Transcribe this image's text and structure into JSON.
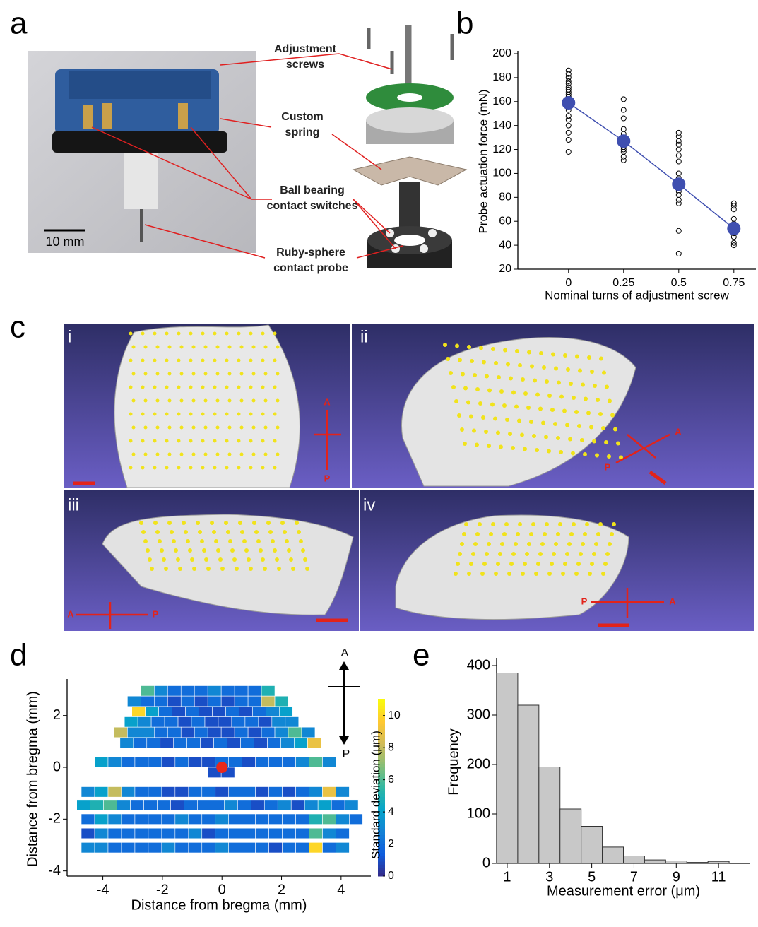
{
  "panel_labels": [
    "a",
    "b",
    "c",
    "d",
    "e"
  ],
  "photo_a": {
    "scale_bar": "10 mm",
    "callouts": [
      [
        "Adjustment",
        "screws"
      ],
      [
        "Custom",
        "spring"
      ],
      [
        "Ball bearing",
        "contact switches"
      ],
      [
        "Ruby-sphere",
        "contact probe"
      ]
    ]
  },
  "views_c": {
    "panels": [
      {
        "label": "i",
        "arrow": [
          "A",
          "P"
        ]
      },
      {
        "label": "ii",
        "arrow": [
          "A",
          "P"
        ]
      },
      {
        "label": "iii",
        "arrow": [
          "A",
          "P"
        ]
      },
      {
        "label": "iv",
        "arrow": [
          "P",
          "A"
        ]
      }
    ]
  },
  "chart_data": [
    {
      "type": "scatter",
      "ylabel": "Probe actuation force (mN)",
      "xlabel": "Nominal turns of adjustment screw",
      "xlim": [
        -0.23,
        0.85
      ],
      "ylim": [
        20,
        200
      ],
      "xticks": [
        0,
        0.25,
        0.5,
        0.75
      ],
      "yticks": [
        20,
        40,
        60,
        80,
        100,
        120,
        140,
        160,
        180,
        200
      ],
      "series": [
        {
          "color": "#000000",
          "marker": "open",
          "x": [
            0,
            0,
            0,
            0,
            0,
            0,
            0,
            0,
            0,
            0,
            0,
            0,
            0,
            0,
            0,
            0,
            0,
            0,
            0,
            0,
            0,
            0.25,
            0.25,
            0.25,
            0.25,
            0.25,
            0.25,
            0.25,
            0.25,
            0.25,
            0.25,
            0.25,
            0.25,
            0.25,
            0.5,
            0.5,
            0.5,
            0.5,
            0.5,
            0.5,
            0.5,
            0.5,
            0.5,
            0.5,
            0.5,
            0.5,
            0.5,
            0.5,
            0.5,
            0.5,
            0.5,
            0.5,
            0.75,
            0.75,
            0.75,
            0.75,
            0.75,
            0.75,
            0.75,
            0.75,
            0.75,
            0.75,
            0.75,
            0.75
          ],
          "values": [
            186,
            183,
            180,
            177,
            175,
            172,
            170,
            168,
            166,
            164,
            162,
            160,
            158,
            156,
            153,
            148,
            145,
            140,
            134,
            128,
            118,
            162,
            153,
            146,
            137,
            133,
            129,
            126,
            124,
            122,
            120,
            118,
            114,
            111,
            134,
            131,
            127,
            124,
            120,
            115,
            110,
            100,
            96,
            92,
            90,
            88,
            85,
            82,
            78,
            75,
            52,
            33,
            75,
            73,
            70,
            62,
            58,
            56,
            54,
            52,
            50,
            47,
            42,
            40
          ]
        },
        {
          "color": "#3f4fb0",
          "marker": "filled",
          "line": true,
          "x": [
            0,
            0.25,
            0.5,
            0.75
          ],
          "values": [
            159,
            127,
            91,
            54
          ]
        }
      ]
    },
    {
      "type": "heatmap",
      "xlabel": "Distance from bregma (mm)",
      "ylabel": "Distance from bregma (mm)",
      "xlim": [
        -5.2,
        5
      ],
      "ylim": [
        -4.2,
        3.3
      ],
      "xticks": [
        -4,
        -2,
        0,
        2,
        4
      ],
      "yticks": [
        -4,
        -2,
        0,
        2
      ],
      "colorbar": {
        "label": "Standard deviation (μm)",
        "lim": [
          0,
          11
        ],
        "ticks": [
          0,
          2,
          4,
          6,
          8,
          10
        ]
      },
      "colormap": [
        "#352a87",
        "#0f5cdd",
        "#1481d6",
        "#06a4ca",
        "#2eb7a4",
        "#87bf77",
        "#d1bb59",
        "#fec832",
        "#f9fb0e"
      ],
      "marker_color": "#e8291c",
      "orientation": [
        "A",
        "P"
      ],
      "rows": [
        {
          "y": 2.95,
          "x": [
            -2.5,
            -2.05,
            -1.6,
            -1.15,
            -0.7,
            -0.25,
            0.2,
            0.65,
            1.1,
            1.55
          ],
          "values": [
            6,
            3,
            2,
            2,
            2,
            3,
            2,
            2,
            2,
            5
          ]
        },
        {
          "y": 2.55,
          "x": [
            -2.95,
            -2.5,
            -2.05,
            -1.6,
            -1.15,
            -0.7,
            -0.25,
            0.2,
            0.65,
            1.1,
            1.55,
            2.0
          ],
          "values": [
            3,
            2,
            2,
            1,
            2,
            1,
            2,
            1,
            2,
            2,
            8,
            5
          ]
        },
        {
          "y": 2.15,
          "x": [
            -2.8,
            -2.35,
            -1.9,
            -1.45,
            -1.0,
            -0.55,
            -0.1,
            0.35,
            0.8,
            1.25,
            1.7,
            2.15
          ],
          "values": [
            10,
            4,
            2,
            1,
            2,
            1,
            1,
            2,
            1,
            2,
            3,
            4
          ]
        },
        {
          "y": 1.75,
          "x": [
            -3.05,
            -2.6,
            -2.15,
            -1.7,
            -1.25,
            -0.8,
            -0.35,
            0.1,
            0.55,
            1.0,
            1.45,
            1.9,
            2.35
          ],
          "values": [
            4,
            3,
            2,
            2,
            1,
            2,
            1,
            1,
            2,
            2,
            1,
            3,
            3
          ]
        },
        {
          "y": 1.35,
          "x": [
            -3.4,
            -2.95,
            -2.5,
            -2.05,
            -1.6,
            -1.15,
            -0.7,
            -0.25,
            0.2,
            0.65,
            1.1,
            1.55,
            2.0,
            2.45,
            2.9
          ],
          "values": [
            8,
            3,
            3,
            2,
            2,
            1,
            2,
            1,
            1,
            2,
            1,
            2,
            3,
            6,
            3
          ]
        },
        {
          "y": 0.95,
          "x": [
            -3.2,
            -2.75,
            -2.3,
            -1.85,
            -1.4,
            -0.95,
            -0.5,
            -0.05,
            0.4,
            0.85,
            1.3,
            1.75,
            2.2,
            2.65,
            3.1
          ],
          "values": [
            3,
            2,
            2,
            1,
            2,
            2,
            1,
            2,
            1,
            2,
            1,
            2,
            3,
            4,
            9
          ]
        },
        {
          "y": 0.2,
          "x": [
            -4.05,
            -3.6,
            -3.15,
            -2.7,
            -2.25,
            -1.8,
            -1.35,
            -0.9,
            -0.45,
            0.0,
            0.45,
            0.9,
            1.35,
            1.8,
            2.25,
            2.7,
            3.15,
            3.6
          ],
          "values": [
            4,
            3,
            2,
            2,
            2,
            1,
            2,
            1,
            1,
            2,
            2,
            1,
            2,
            2,
            2,
            3,
            6,
            3
          ]
        },
        {
          "y": -0.2,
          "x": [
            -0.25,
            0.2
          ],
          "values": [
            1,
            1
          ]
        },
        {
          "y": -0.95,
          "x": [
            -4.5,
            -4.05,
            -3.6,
            -3.15,
            -2.7,
            -2.25,
            -1.8,
            -1.35,
            -0.9,
            -0.45,
            0,
            0.45,
            0.9,
            1.35,
            1.8,
            2.25,
            2.7,
            3.15,
            3.6,
            4.05
          ],
          "values": [
            3,
            4,
            8,
            3,
            2,
            2,
            1,
            1,
            2,
            2,
            1,
            2,
            2,
            1,
            2,
            1,
            2,
            3,
            9,
            3
          ]
        },
        {
          "y": -1.45,
          "x": [
            -4.65,
            -4.2,
            -3.75,
            -3.3,
            -2.85,
            -2.4,
            -1.95,
            -1.5,
            -1.05,
            -0.6,
            -0.15,
            0.3,
            0.75,
            1.2,
            1.65,
            2.1,
            2.55,
            3.0,
            3.45,
            3.9,
            4.35
          ],
          "values": [
            4,
            5,
            6,
            3,
            2,
            2,
            2,
            1,
            2,
            2,
            2,
            3,
            2,
            1,
            2,
            3,
            1,
            3,
            4,
            2,
            3
          ]
        },
        {
          "y": -2.0,
          "x": [
            -4.5,
            -4.05,
            -3.6,
            -3.15,
            -2.7,
            -2.25,
            -1.8,
            -1.35,
            -0.9,
            -0.45,
            0,
            0.45,
            0.9,
            1.35,
            1.8,
            2.25,
            2.7,
            3.15,
            3.6,
            4.05,
            4.5
          ],
          "values": [
            2,
            4,
            3,
            2,
            2,
            2,
            2,
            3,
            2,
            2,
            3,
            2,
            2,
            2,
            2,
            2,
            2,
            5,
            6,
            3,
            2
          ]
        },
        {
          "y": -2.55,
          "x": [
            -4.5,
            -4.05,
            -3.6,
            -3.15,
            -2.7,
            -2.25,
            -1.8,
            -1.35,
            -0.9,
            -0.45,
            0,
            0.45,
            0.9,
            1.35,
            1.8,
            2.25,
            2.7,
            3.15,
            3.6,
            4.05
          ],
          "values": [
            1,
            3,
            2,
            2,
            2,
            2,
            2,
            2,
            3,
            1,
            2,
            2,
            2,
            2,
            2,
            2,
            2,
            6,
            3,
            2
          ]
        },
        {
          "y": -3.1,
          "x": [
            -4.5,
            -4.05,
            -3.6,
            -3.15,
            -2.7,
            -2.25,
            -1.8,
            -1.35,
            -0.9,
            -0.45,
            0,
            0.45,
            0.9,
            1.35,
            1.8,
            2.25,
            2.7,
            3.15,
            3.6,
            4.05
          ],
          "values": [
            3,
            3,
            2,
            2,
            2,
            2,
            3,
            2,
            2,
            2,
            3,
            2,
            2,
            2,
            1,
            2,
            2,
            10,
            2,
            3
          ]
        }
      ]
    },
    {
      "type": "histogram",
      "xlabel": "Measurement error (μm)",
      "ylabel": "Frequency",
      "bins": [
        0.5,
        1.5,
        2.5,
        3.5,
        4.5,
        5.5,
        6.5,
        7.5,
        8.5,
        9.5,
        10.5,
        11.5
      ],
      "values": [
        385,
        320,
        195,
        110,
        75,
        33,
        15,
        7,
        5,
        2,
        4
      ],
      "xlim": [
        0.5,
        12.5
      ],
      "ylim": [
        0,
        410
      ],
      "xticks": [
        1,
        3,
        5,
        7,
        9,
        11
      ],
      "yticks": [
        0,
        100,
        200,
        300,
        400
      ],
      "color": "#c8c8c8"
    }
  ]
}
